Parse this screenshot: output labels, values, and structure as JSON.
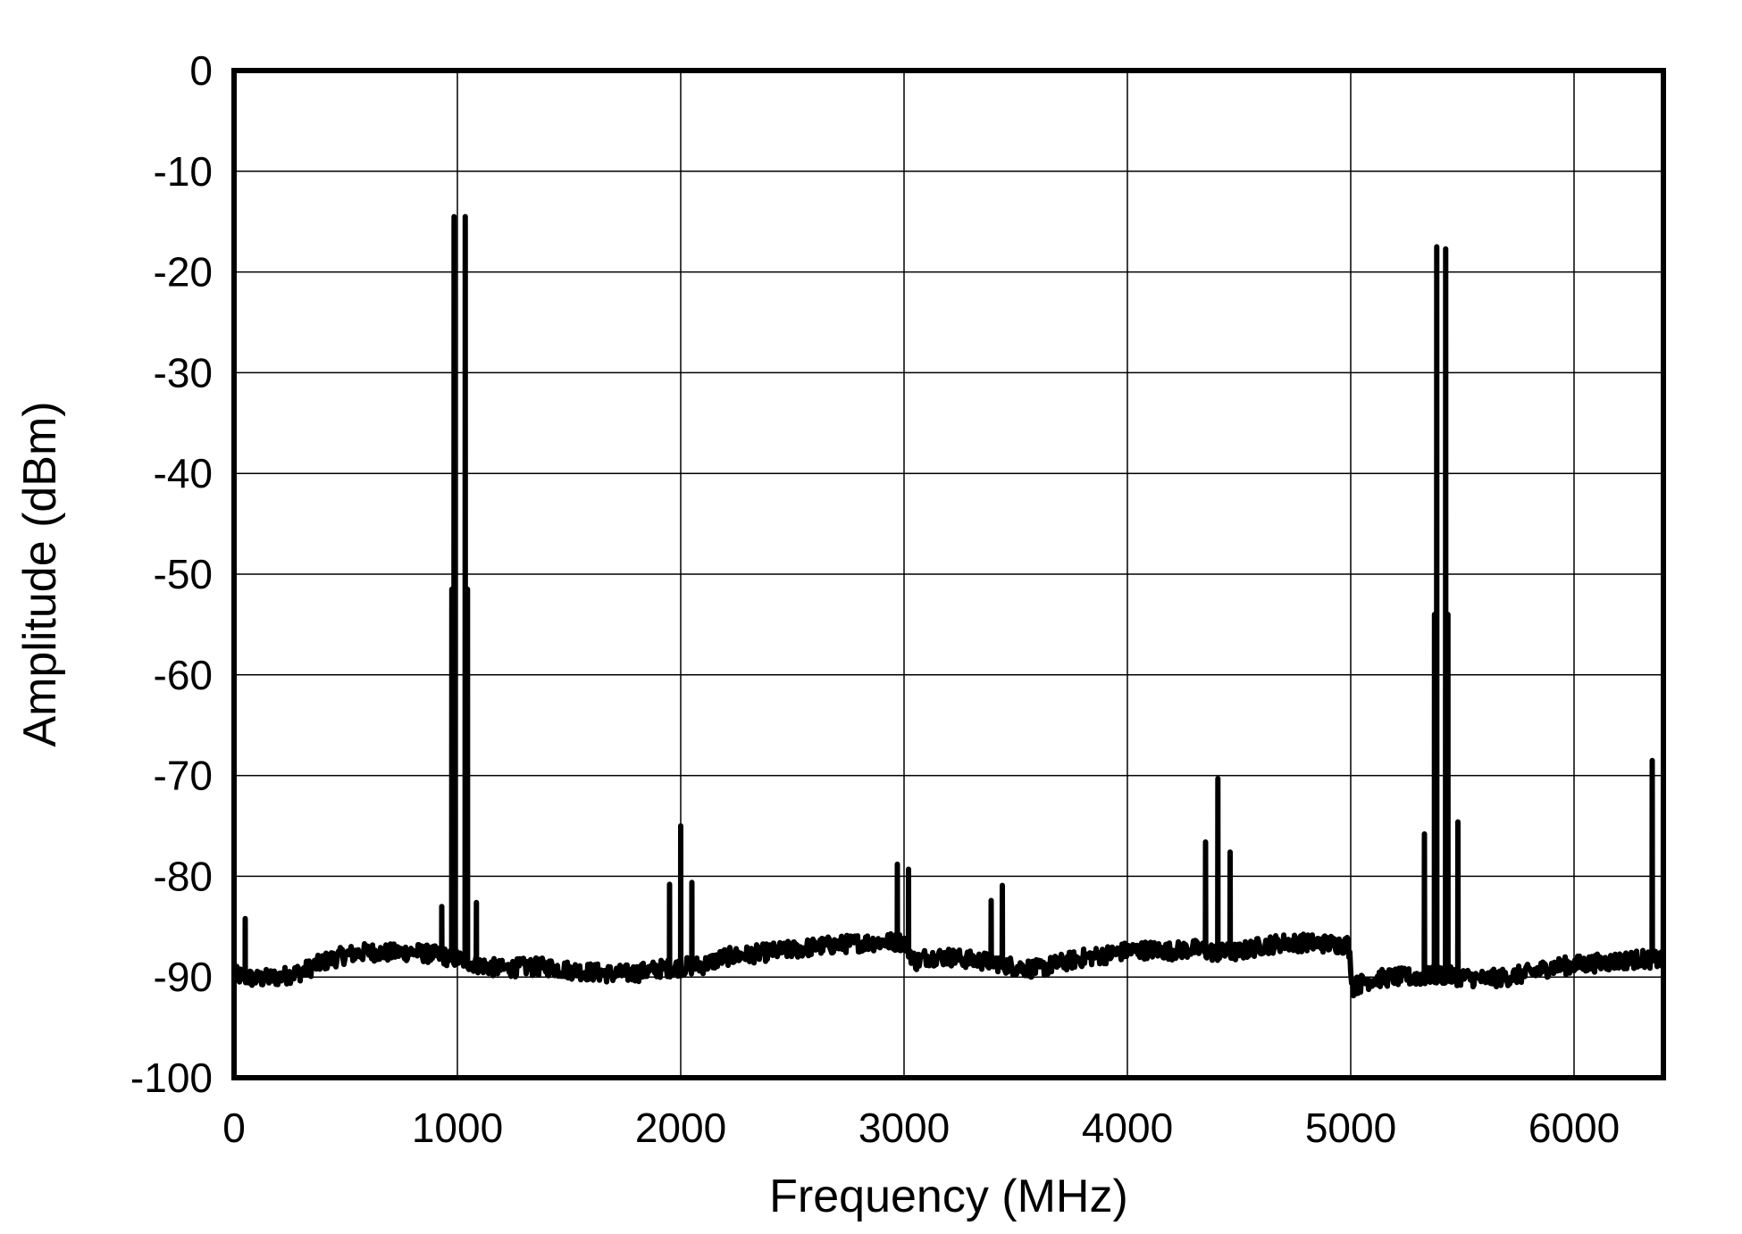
{
  "chart_data": {
    "type": "line",
    "title": "",
    "xlabel": "Frequency (MHz)",
    "ylabel": "Amplitude (dBm)",
    "xlim": [
      0,
      6400
    ],
    "ylim": [
      -100,
      0
    ],
    "xticks": [
      0,
      1000,
      2000,
      3000,
      4000,
      5000,
      6000
    ],
    "yticks": [
      0,
      -10,
      -20,
      -30,
      -40,
      -50,
      -60,
      -70,
      -80,
      -90,
      -100
    ],
    "xtick_labels": [
      "0",
      "1000",
      "2000",
      "3000",
      "4000",
      "5000",
      "6000"
    ],
    "ytick_labels": [
      "0",
      "-10",
      "-20",
      "-30",
      "-40",
      "-50",
      "-60",
      "-70",
      "-80",
      "-90",
      "-100"
    ],
    "grid": true,
    "legend": "none",
    "line_color": "#000000",
    "grid_color": "#000000",
    "series": [
      {
        "noise_floor": {
          "x": [
            0,
            100,
            200,
            300,
            400,
            500,
            600,
            700,
            800,
            900,
            1000,
            1100,
            1200,
            1300,
            1400,
            1500,
            1600,
            1700,
            1800,
            1900,
            2000,
            2100,
            2200,
            2300,
            2400,
            2500,
            2600,
            2700,
            2800,
            2900,
            3000,
            3050,
            3100,
            3200,
            3300,
            3400,
            3500,
            3600,
            3700,
            3800,
            3900,
            4000,
            4100,
            4200,
            4300,
            4400,
            4500,
            4600,
            4700,
            4800,
            4900,
            4990,
            5010,
            5050,
            5100,
            5200,
            5300,
            5400,
            5500,
            5600,
            5700,
            5800,
            5900,
            6000,
            6100,
            6200,
            6300,
            6400
          ],
          "y": [
            -89.8,
            -90.2,
            -90,
            -89.5,
            -88.5,
            -87.8,
            -87.5,
            -87.6,
            -87.5,
            -87.8,
            -88.2,
            -88.8,
            -89.2,
            -89,
            -89,
            -89.3,
            -89.5,
            -89.7,
            -89.6,
            -89.2,
            -89,
            -88.8,
            -88,
            -87.8,
            -87.5,
            -87.3,
            -87,
            -86.8,
            -86.6,
            -86.5,
            -86.5,
            -88.5,
            -88,
            -88,
            -88.3,
            -88.5,
            -89,
            -89.2,
            -88.6,
            -88.1,
            -87.8,
            -87.4,
            -87.3,
            -87.4,
            -87.2,
            -87.6,
            -87.5,
            -86.9,
            -86.6,
            -86.6,
            -86.7,
            -86.8,
            -91,
            -90.6,
            -90.2,
            -90,
            -90,
            -89.8,
            -90,
            -90.2,
            -90,
            -89.6,
            -89,
            -88.8,
            -88.6,
            -88.4,
            -88.2,
            -88.3
          ]
        },
        "spurs": [
          {
            "x": 50,
            "y": -84.2
          },
          {
            "x": 930,
            "y": -83
          },
          {
            "x": 975,
            "y": -51.5
          },
          {
            "x": 985,
            "y": -14.5
          },
          {
            "x": 1035,
            "y": -14.5
          },
          {
            "x": 1045,
            "y": -51.5
          },
          {
            "x": 1085,
            "y": -82.6
          },
          {
            "x": 1950,
            "y": -80.8
          },
          {
            "x": 2000,
            "y": -75
          },
          {
            "x": 2050,
            "y": -80.6
          },
          {
            "x": 2970,
            "y": -78.8
          },
          {
            "x": 3020,
            "y": -79.3
          },
          {
            "x": 3390,
            "y": -82.4
          },
          {
            "x": 3440,
            "y": -80.9
          },
          {
            "x": 4350,
            "y": -76.6
          },
          {
            "x": 4405,
            "y": -70.3
          },
          {
            "x": 4460,
            "y": -77.6
          },
          {
            "x": 5330,
            "y": -75.8
          },
          {
            "x": 5375,
            "y": -54
          },
          {
            "x": 5385,
            "y": -17.5
          },
          {
            "x": 5425,
            "y": -17.7
          },
          {
            "x": 5435,
            "y": -54
          },
          {
            "x": 5480,
            "y": -74.6
          },
          {
            "x": 6350,
            "y": -68.5
          },
          {
            "x": 6400,
            "y": -66
          }
        ]
      }
    ]
  }
}
